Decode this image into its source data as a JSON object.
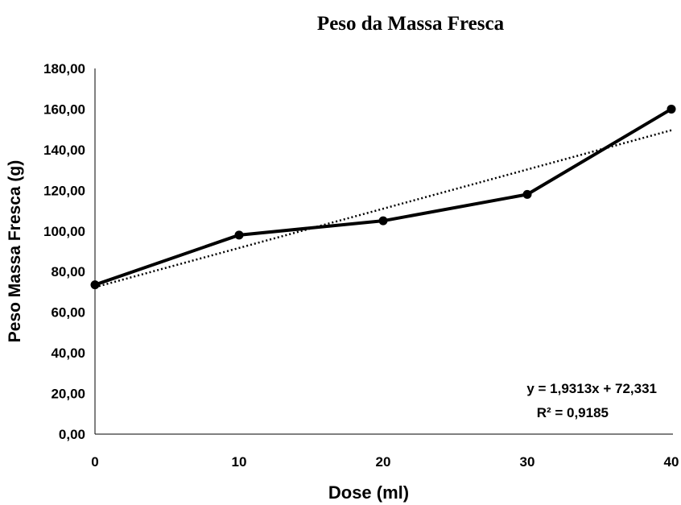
{
  "chart_data": {
    "type": "line",
    "title": "Peso da Massa Fresca",
    "xlabel": "Dose (ml)",
    "ylabel": "Peso Massa Fresca (g)",
    "x": [
      0,
      10,
      20,
      30,
      40
    ],
    "x_tick_labels": [
      "0",
      "10",
      "20",
      "30",
      "40"
    ],
    "y_tick_labels": [
      "0,00",
      "20,00",
      "40,00",
      "60,00",
      "80,00",
      "100,00",
      "120,00",
      "140,00",
      "160,00",
      "180,00"
    ],
    "ylim": [
      0,
      180
    ],
    "xlim": [
      0,
      40
    ],
    "series": [
      {
        "values": [
          73.5,
          98,
          105,
          118,
          160
        ],
        "color": "#000000",
        "markers": true
      }
    ],
    "trendline": {
      "type": "linear",
      "slope": 1.9313,
      "intercept": 72.331,
      "style": "dotted",
      "color": "#000000"
    },
    "annotations": [
      "y = 1,9313x + 72,331",
      "R² = 0,9185"
    ],
    "grid": false,
    "legend": "none"
  }
}
